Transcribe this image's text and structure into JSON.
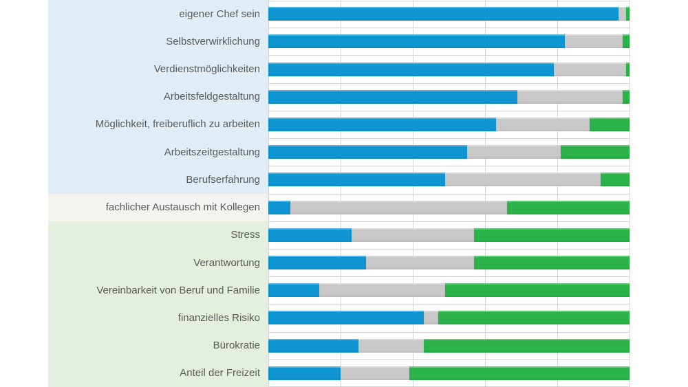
{
  "chart_data": {
    "type": "bar",
    "variant": "horizontal-100-percent-stacked",
    "title": "",
    "xlabel": "",
    "ylabel": "",
    "axis": {
      "min": 0,
      "max": 100,
      "gridline_step": 20,
      "tick_labels_visible": false
    },
    "legend_visible": false,
    "grid": true,
    "categories": [
      "eigener Chef sein",
      "Selbstverwirklichung",
      "Verdienstmöglichkeiten",
      "Arbeitsfeldgestaltung",
      "Möglichkeit, freiberuflich zu arbeiten",
      "Arbeitszeitgestaltung",
      "Berufserfahrung",
      "fachlicher Austausch mit Kollegen",
      "Stress",
      "Verantwortung",
      "Vereinbarkeit von Beruf und Familie",
      "finanzielles Risiko",
      "Bürokratie",
      "Anteil der Freizeit"
    ],
    "series": [
      {
        "name": "blue",
        "color": "#0f95d2",
        "values": [
          97,
          82,
          79,
          69,
          63,
          55,
          49,
          6,
          23,
          27,
          14,
          43,
          25,
          20
        ]
      },
      {
        "name": "gray",
        "color": "#c9c9c9",
        "values": [
          2,
          16,
          20,
          29,
          26,
          26,
          43,
          60,
          34,
          30,
          35,
          4,
          18,
          19
        ]
      },
      {
        "name": "green",
        "color": "#2bb34a",
        "values": [
          1,
          2,
          1,
          2,
          11,
          19,
          8,
          34,
          43,
          43,
          51,
          53,
          57,
          61
        ]
      }
    ],
    "label_groups": [
      {
        "start_row": 0,
        "end_row": 6,
        "background": "#e0edf7"
      },
      {
        "start_row": 7,
        "end_row": 7,
        "background": "#f4f3ef"
      },
      {
        "start_row": 8,
        "end_row": 13,
        "background": "#e4efe0"
      }
    ],
    "label_color": "#595959",
    "gridline_color": "#d4d4d4"
  }
}
